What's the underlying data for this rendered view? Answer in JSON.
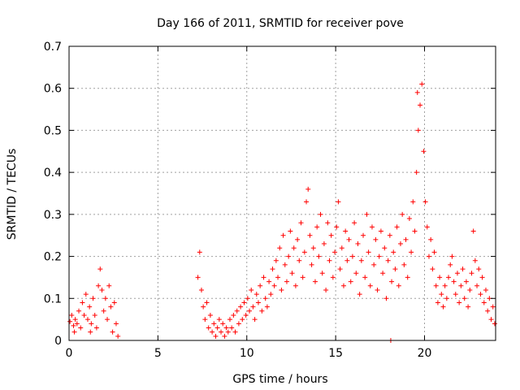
{
  "chart_data": {
    "type": "scatter",
    "title": "Day 166 of 2011, SRMTID for receiver pove",
    "xlabel": "GPS time / hours",
    "ylabel": "SRMTID / TECUs",
    "xlim": [
      0,
      24
    ],
    "ylim": [
      0,
      0.7
    ],
    "xticks": [
      0,
      5,
      10,
      15,
      20
    ],
    "xtick_labels": [
      "0",
      "5",
      "10",
      "15",
      "20"
    ],
    "yticks": [
      0,
      0.1,
      0.2,
      0.3,
      0.4,
      0.5,
      0.6,
      0.7
    ],
    "ytick_labels": [
      "0",
      "0.1",
      "0.2",
      "0.3",
      "0.4",
      "0.5",
      "0.6",
      "0.7"
    ],
    "grid": true,
    "marker": "+",
    "color": "#ff0000",
    "series": [
      {
        "name": "SRMTID",
        "points": [
          [
            0.05,
            0.045
          ],
          [
            0.15,
            0.06
          ],
          [
            0.25,
            0.035
          ],
          [
            0.35,
            0.05
          ],
          [
            0.45,
            0.04
          ],
          [
            0.55,
            0.07
          ],
          [
            0.65,
            0.03
          ],
          [
            0.75,
            0.09
          ],
          [
            0.85,
            0.06
          ],
          [
            0.95,
            0.11
          ],
          [
            1.05,
            0.05
          ],
          [
            1.15,
            0.08
          ],
          [
            1.25,
            0.04
          ],
          [
            1.35,
            0.1
          ],
          [
            1.45,
            0.06
          ],
          [
            1.55,
            0.03
          ],
          [
            1.65,
            0.13
          ],
          [
            1.75,
            0.17
          ],
          [
            1.85,
            0.12
          ],
          [
            1.95,
            0.07
          ],
          [
            2.05,
            0.1
          ],
          [
            2.15,
            0.05
          ],
          [
            2.25,
            0.13
          ],
          [
            2.35,
            0.08
          ],
          [
            2.45,
            0.02
          ],
          [
            2.55,
            0.09
          ],
          [
            2.65,
            0.04
          ],
          [
            2.75,
            0.01
          ],
          [
            0.3,
            0.02
          ],
          [
            1.2,
            0.02
          ],
          [
            7.25,
            0.15
          ],
          [
            7.35,
            0.21
          ],
          [
            7.45,
            0.12
          ],
          [
            7.55,
            0.08
          ],
          [
            7.65,
            0.05
          ],
          [
            7.75,
            0.09
          ],
          [
            7.85,
            0.03
          ],
          [
            7.95,
            0.06
          ],
          [
            8.05,
            0.02
          ],
          [
            8.15,
            0.04
          ],
          [
            8.25,
            0.01
          ],
          [
            8.35,
            0.03
          ],
          [
            8.45,
            0.05
          ],
          [
            8.55,
            0.02
          ],
          [
            8.65,
            0.04
          ],
          [
            8.75,
            0.01
          ],
          [
            8.85,
            0.03
          ],
          [
            8.95,
            0.02
          ],
          [
            9.05,
            0.05
          ],
          [
            9.15,
            0.03
          ],
          [
            9.25,
            0.06
          ],
          [
            9.35,
            0.02
          ],
          [
            9.45,
            0.07
          ],
          [
            9.55,
            0.04
          ],
          [
            9.65,
            0.08
          ],
          [
            9.75,
            0.05
          ],
          [
            9.85,
            0.09
          ],
          [
            9.95,
            0.06
          ],
          [
            10.05,
            0.1
          ],
          [
            10.15,
            0.07
          ],
          [
            10.25,
            0.12
          ],
          [
            10.35,
            0.08
          ],
          [
            10.45,
            0.05
          ],
          [
            10.55,
            0.11
          ],
          [
            10.65,
            0.09
          ],
          [
            10.75,
            0.13
          ],
          [
            10.85,
            0.07
          ],
          [
            10.95,
            0.15
          ],
          [
            11.05,
            0.1
          ],
          [
            11.15,
            0.08
          ],
          [
            11.25,
            0.14
          ],
          [
            11.35,
            0.11
          ],
          [
            11.45,
            0.17
          ],
          [
            11.55,
            0.13
          ],
          [
            11.65,
            0.19
          ],
          [
            11.75,
            0.15
          ],
          [
            11.85,
            0.22
          ],
          [
            11.95,
            0.12
          ],
          [
            12.05,
            0.25
          ],
          [
            12.15,
            0.18
          ],
          [
            12.25,
            0.14
          ],
          [
            12.35,
            0.2
          ],
          [
            12.45,
            0.26
          ],
          [
            12.55,
            0.16
          ],
          [
            12.65,
            0.22
          ],
          [
            12.75,
            0.13
          ],
          [
            12.85,
            0.24
          ],
          [
            12.95,
            0.19
          ],
          [
            13.05,
            0.28
          ],
          [
            13.15,
            0.15
          ],
          [
            13.25,
            0.21
          ],
          [
            13.35,
            0.33
          ],
          [
            13.45,
            0.36
          ],
          [
            13.55,
            0.25
          ],
          [
            13.65,
            0.18
          ],
          [
            13.75,
            0.22
          ],
          [
            13.85,
            0.14
          ],
          [
            13.95,
            0.27
          ],
          [
            14.05,
            0.2
          ],
          [
            14.15,
            0.3
          ],
          [
            14.25,
            0.16
          ],
          [
            14.35,
            0.23
          ],
          [
            14.45,
            0.12
          ],
          [
            14.55,
            0.28
          ],
          [
            14.65,
            0.19
          ],
          [
            14.75,
            0.25
          ],
          [
            14.85,
            0.15
          ],
          [
            14.95,
            0.21
          ],
          [
            15.05,
            0.27
          ],
          [
            15.15,
            0.33
          ],
          [
            15.25,
            0.17
          ],
          [
            15.35,
            0.22
          ],
          [
            15.45,
            0.13
          ],
          [
            15.55,
            0.26
          ],
          [
            15.65,
            0.19
          ],
          [
            15.75,
            0.24
          ],
          [
            15.85,
            0.14
          ],
          [
            15.95,
            0.2
          ],
          [
            16.05,
            0.28
          ],
          [
            16.15,
            0.16
          ],
          [
            16.25,
            0.23
          ],
          [
            16.35,
            0.11
          ],
          [
            16.45,
            0.19
          ],
          [
            16.55,
            0.25
          ],
          [
            16.65,
            0.15
          ],
          [
            16.75,
            0.3
          ],
          [
            16.85,
            0.21
          ],
          [
            16.95,
            0.13
          ],
          [
            17.05,
            0.27
          ],
          [
            17.15,
            0.18
          ],
          [
            17.25,
            0.24
          ],
          [
            17.35,
            0.12
          ],
          [
            17.45,
            0.2
          ],
          [
            17.55,
            0.26
          ],
          [
            17.65,
            0.16
          ],
          [
            17.75,
            0.22
          ],
          [
            17.85,
            0.1
          ],
          [
            17.95,
            0.19
          ],
          [
            18.05,
            0.25
          ],
          [
            18.15,
            0.14
          ],
          [
            18.25,
            0.21
          ],
          [
            18.35,
            0.17
          ],
          [
            18.45,
            0.27
          ],
          [
            18.55,
            0.13
          ],
          [
            18.65,
            0.23
          ],
          [
            18.75,
            0.3
          ],
          [
            18.85,
            0.18
          ],
          [
            18.95,
            0.24
          ],
          [
            19.05,
            0.15
          ],
          [
            19.15,
            0.29
          ],
          [
            19.25,
            0.21
          ],
          [
            19.35,
            0.33
          ],
          [
            19.45,
            0.26
          ],
          [
            19.55,
            0.4
          ],
          [
            19.65,
            0.5
          ],
          [
            19.75,
            0.56
          ],
          [
            19.85,
            0.61
          ],
          [
            19.95,
            0.45
          ],
          [
            20.05,
            0.33
          ],
          [
            20.15,
            0.27
          ],
          [
            20.25,
            0.2
          ],
          [
            20.35,
            0.24
          ],
          [
            20.45,
            0.17
          ],
          [
            20.55,
            0.21
          ],
          [
            20.65,
            0.13
          ],
          [
            20.75,
            0.09
          ],
          [
            20.85,
            0.15
          ],
          [
            20.95,
            0.11
          ],
          [
            21.05,
            0.08
          ],
          [
            21.15,
            0.13
          ],
          [
            21.25,
            0.1
          ],
          [
            21.35,
            0.15
          ],
          [
            21.45,
            0.18
          ],
          [
            21.55,
            0.2
          ],
          [
            21.65,
            0.14
          ],
          [
            21.75,
            0.11
          ],
          [
            21.85,
            0.16
          ],
          [
            21.95,
            0.09
          ],
          [
            22.05,
            0.13
          ],
          [
            22.15,
            0.17
          ],
          [
            22.25,
            0.1
          ],
          [
            22.35,
            0.14
          ],
          [
            22.45,
            0.08
          ],
          [
            22.55,
            0.12
          ],
          [
            22.65,
            0.16
          ],
          [
            22.75,
            0.26
          ],
          [
            22.85,
            0.19
          ],
          [
            22.95,
            0.13
          ],
          [
            23.05,
            0.17
          ],
          [
            23.15,
            0.11
          ],
          [
            23.25,
            0.15
          ],
          [
            23.35,
            0.09
          ],
          [
            23.45,
            0.12
          ],
          [
            23.55,
            0.07
          ],
          [
            23.65,
            0.1
          ],
          [
            23.75,
            0.05
          ],
          [
            23.85,
            0.08
          ],
          [
            23.95,
            0.04
          ],
          [
            18.1,
            0.0
          ],
          [
            19.6,
            0.59
          ]
        ]
      }
    ]
  }
}
